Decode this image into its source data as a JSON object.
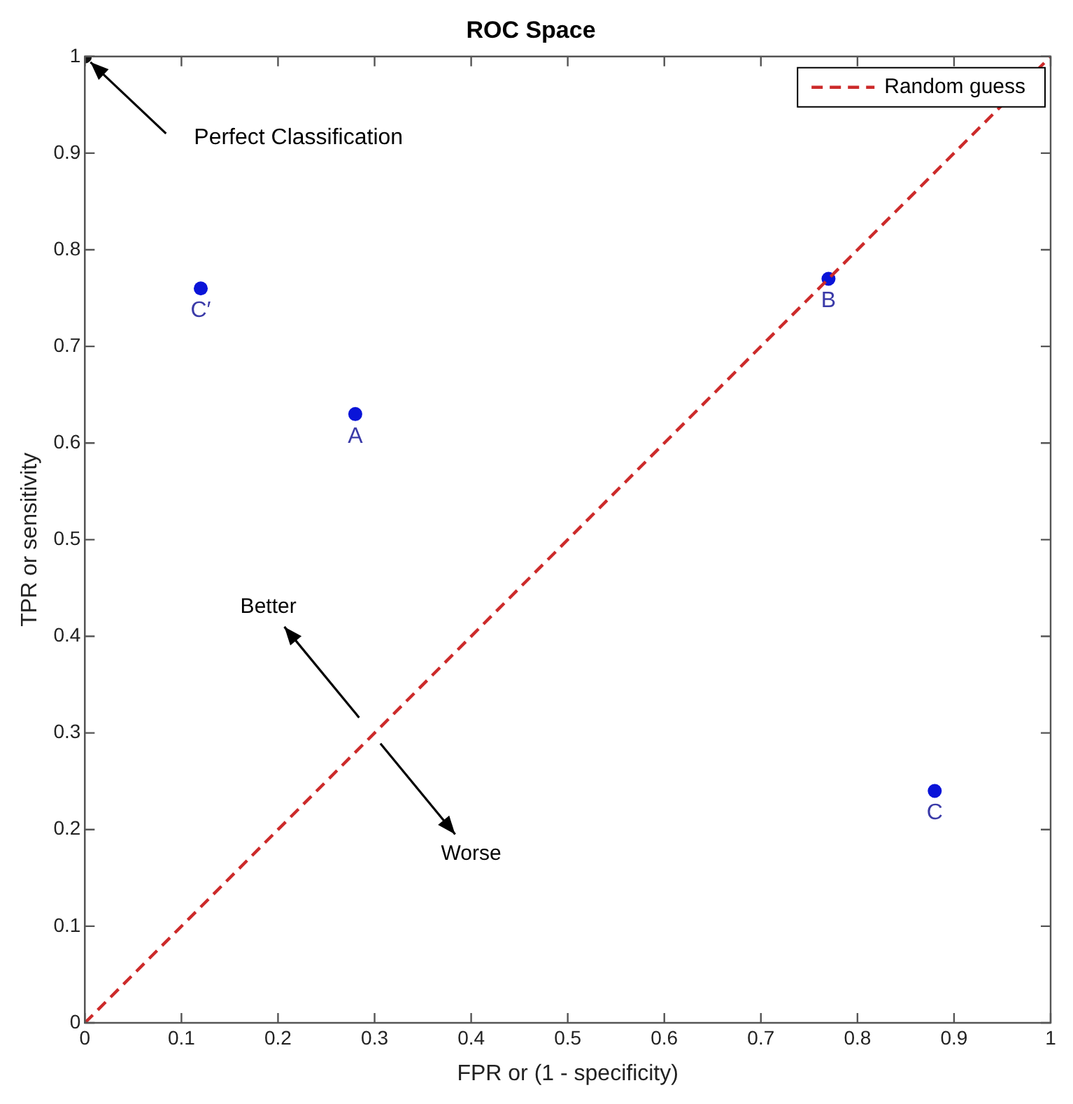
{
  "chart_data": {
    "type": "scatter",
    "title": "ROC Space",
    "xlabel": "FPR or (1 - specificity)",
    "ylabel": "TPR or sensitivity",
    "xlim": [
      0,
      1
    ],
    "ylim": [
      0,
      1
    ],
    "xticks": [
      0,
      0.1,
      0.2,
      0.3,
      0.4,
      0.5,
      0.6,
      0.7,
      0.8,
      0.9,
      1
    ],
    "yticks": [
      0,
      0.1,
      0.2,
      0.3,
      0.4,
      0.5,
      0.6,
      0.7,
      0.8,
      0.9,
      1
    ],
    "grid": false,
    "legend": "top right",
    "marker": "circle",
    "series": [
      {
        "name": "Random guess",
        "type": "line",
        "color": "#cc2a2a",
        "line_style": "dashed",
        "marker": "none",
        "x": [
          0,
          1
        ],
        "values": [
          0,
          1
        ]
      },
      {
        "type": "scatter",
        "color": "#0a14d8",
        "x": [
          0.12,
          0.28,
          0.77,
          0.88
        ],
        "values": [
          0.76,
          0.63,
          0.77,
          0.24
        ]
      },
      {
        "type": "scatter",
        "color": "#111111",
        "x": [
          0
        ],
        "values": [
          1
        ]
      }
    ],
    "annotations": [
      {
        "text": "Perfect Classification",
        "x": 0,
        "y": 1
      },
      {
        "text": "C′",
        "x": 0.12,
        "y": 0.76
      },
      {
        "text": "A",
        "x": 0.28,
        "y": 0.63
      },
      {
        "text": "B",
        "x": 0.77,
        "y": 0.77
      },
      {
        "text": "C",
        "x": 0.88,
        "y": 0.24
      },
      "Better",
      "Worse"
    ]
  }
}
